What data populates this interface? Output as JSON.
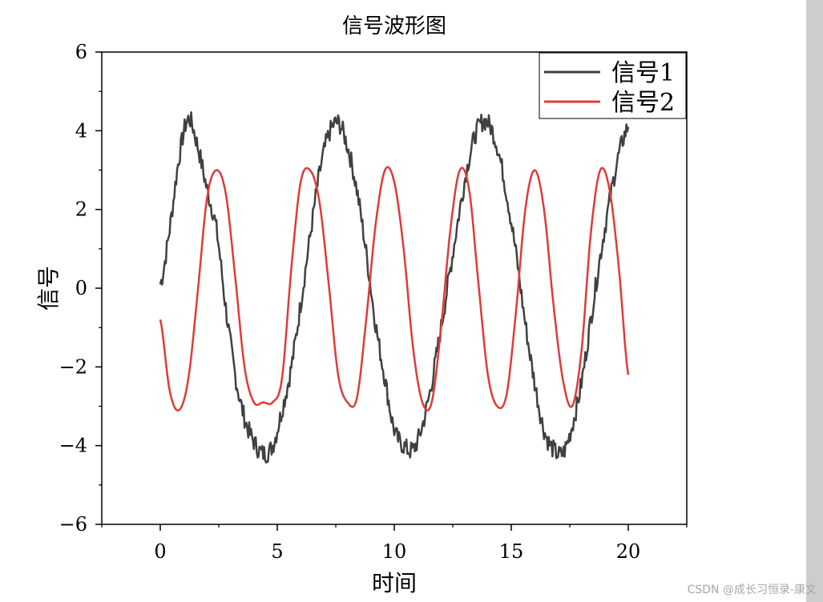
{
  "chart_data": {
    "type": "line",
    "title": "信号波形图",
    "xlabel": "时间",
    "ylabel": "信号",
    "xlim": [
      -2.5,
      22.5
    ],
    "ylim": [
      -6,
      6
    ],
    "xticks": [
      0,
      5,
      10,
      15,
      20
    ],
    "xtick_labels": [
      "0",
      "5",
      "10",
      "15",
      "20"
    ],
    "yticks": [
      -6,
      -4,
      -2,
      0,
      2,
      4,
      6
    ],
    "ytick_labels": [
      "−6",
      "−4",
      "−2",
      "0",
      "2",
      "4",
      "6"
    ],
    "grid": false,
    "legend_position": "top-right",
    "x": [
      0,
      0.4,
      0.8,
      1.2,
      1.6,
      2.0,
      2.4,
      2.8,
      3.2,
      3.6,
      4.0,
      4.4,
      4.8,
      5.2,
      5.6,
      6.0,
      6.4,
      6.8,
      7.2,
      7.6,
      8.0,
      8.4,
      8.8,
      9.2,
      9.6,
      10.0,
      10.4,
      10.8,
      11.2,
      11.6,
      12.0,
      12.4,
      12.8,
      13.2,
      13.6,
      14.0,
      14.4,
      14.8,
      15.2,
      15.6,
      16.0,
      16.4,
      16.8,
      17.2,
      17.6,
      18.0,
      18.4,
      18.8,
      19.2,
      19.6,
      20.0
    ],
    "series": [
      {
        "name": "信号1",
        "color": "#404040",
        "values": [
          0.1,
          1.5,
          3.3,
          4.3,
          3.6,
          2.5,
          1.5,
          -0.5,
          -2.2,
          -3.3,
          -3.9,
          -4.2,
          -4.0,
          -3.1,
          -2.0,
          -0.4,
          1.3,
          2.9,
          3.9,
          4.2,
          3.6,
          2.5,
          0.9,
          -0.9,
          -2.3,
          -3.6,
          -4.0,
          -4.1,
          -3.5,
          -2.4,
          -1.0,
          0.5,
          2.0,
          3.3,
          4.1,
          4.2,
          3.6,
          2.4,
          0.9,
          -0.9,
          -2.4,
          -3.6,
          -4.1,
          -4.2,
          -3.5,
          -2.4,
          -0.8,
          0.8,
          2.2,
          3.4,
          4.1
        ],
        "noisy": true
      },
      {
        "name": "信号2",
        "color": "#e03a3a",
        "values": [
          -0.8,
          -2.6,
          -3.1,
          -2.3,
          -0.1,
          2.3,
          3.0,
          2.4,
          0.3,
          -2.0,
          -2.9,
          -2.9,
          -2.9,
          -2.3,
          0.5,
          2.7,
          3.0,
          2.2,
          0.1,
          -2.2,
          -2.9,
          -2.8,
          -0.8,
          1.6,
          3.0,
          2.7,
          1.0,
          -1.5,
          -2.9,
          -2.9,
          -1.0,
          1.5,
          3.0,
          2.5,
          0.1,
          -2.2,
          -3.0,
          -2.7,
          -0.6,
          2.0,
          3.0,
          2.0,
          -0.4,
          -2.3,
          -3.0,
          -1.6,
          1.4,
          3.0,
          2.5,
          0.5,
          -2.2
        ],
        "noisy": false
      }
    ]
  },
  "watermark": "CSDN @成长习恒录-康文"
}
